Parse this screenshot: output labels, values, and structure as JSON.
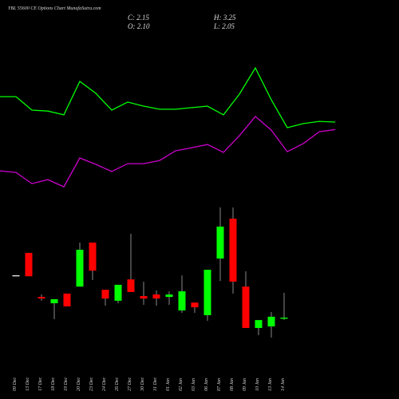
{
  "chart_data": {
    "type": "candlestick",
    "title": "YBL 55600 CE Options Chart MunafaSutra.com",
    "header": [
      "C: 2.15",
      "H: 3.25",
      "O: 2.10",
      "L: 2.05"
    ],
    "categories": [
      "09 Dec",
      "13 Dec",
      "17 Dec",
      "18 Dec",
      "19 Dec",
      "20 Dec",
      "23 Dec",
      "24 Dec",
      "26 Dec",
      "27 Dec",
      "30 Dec",
      "31 Dec",
      "01 Jan",
      "02 Jan",
      "03 Jan",
      "06 Jan",
      "07 Jan",
      "08 Jan",
      "09 Jan",
      "10 Jan",
      "13 Jan",
      "14 Jan"
    ],
    "open": [
      4.03,
      5.03,
      3.07,
      2.79,
      3.22,
      3.53,
      5.49,
      3.39,
      2.9,
      3.85,
      3.11,
      3.18,
      3.07,
      2.47,
      2.82,
      2.26,
      4.78,
      6.55,
      3.53,
      1.69,
      1.76,
      2.1
    ],
    "high": [
      4.03,
      5.03,
      3.18,
      2.97,
      3.22,
      5.49,
      5.49,
      3.39,
      3.61,
      5.88,
      3.75,
      3.36,
      3.32,
      4.03,
      2.82,
      4.28,
      7.05,
      7.05,
      4.21,
      2.04,
      2.4,
      3.25
    ],
    "low": [
      4.03,
      3.99,
      2.9,
      2.08,
      2.65,
      3.53,
      3.82,
      2.68,
      2.79,
      3.29,
      2.72,
      2.68,
      2.72,
      2.36,
      2.36,
      2.01,
      3.78,
      3.22,
      1.69,
      1.37,
      1.26,
      2.05
    ],
    "close": [
      4.03,
      3.99,
      3.0,
      2.97,
      2.65,
      5.17,
      4.24,
      3.0,
      3.61,
      3.29,
      3.0,
      3.0,
      3.18,
      3.32,
      2.61,
      4.28,
      6.2,
      3.75,
      1.69,
      2.04,
      2.19,
      2.15
    ],
    "up_color": "#00ff00",
    "down_color": "#ff0000",
    "flat_color": "#ffffff",
    "series": [
      {
        "color": "#00ff00",
        "values": [
          11.98,
          11.98,
          11.38,
          11.34,
          11.17,
          12.66,
          12.13,
          11.38,
          11.74,
          11.56,
          11.42,
          11.42,
          11.49,
          11.56,
          11.17,
          12.09,
          13.26,
          11.84,
          10.6,
          10.78,
          10.88,
          10.85
        ]
      },
      {
        "color": "#cc00cc",
        "values": [
          8.68,
          8.61,
          8.11,
          8.29,
          7.97,
          9.25,
          8.97,
          8.65,
          9.0,
          9.0,
          9.14,
          9.57,
          9.71,
          9.85,
          9.5,
          10.24,
          11.1,
          10.49,
          9.53,
          9.89,
          10.42,
          10.52
        ]
      }
    ],
    "ylim": [
      0.66,
      14.86
    ]
  }
}
